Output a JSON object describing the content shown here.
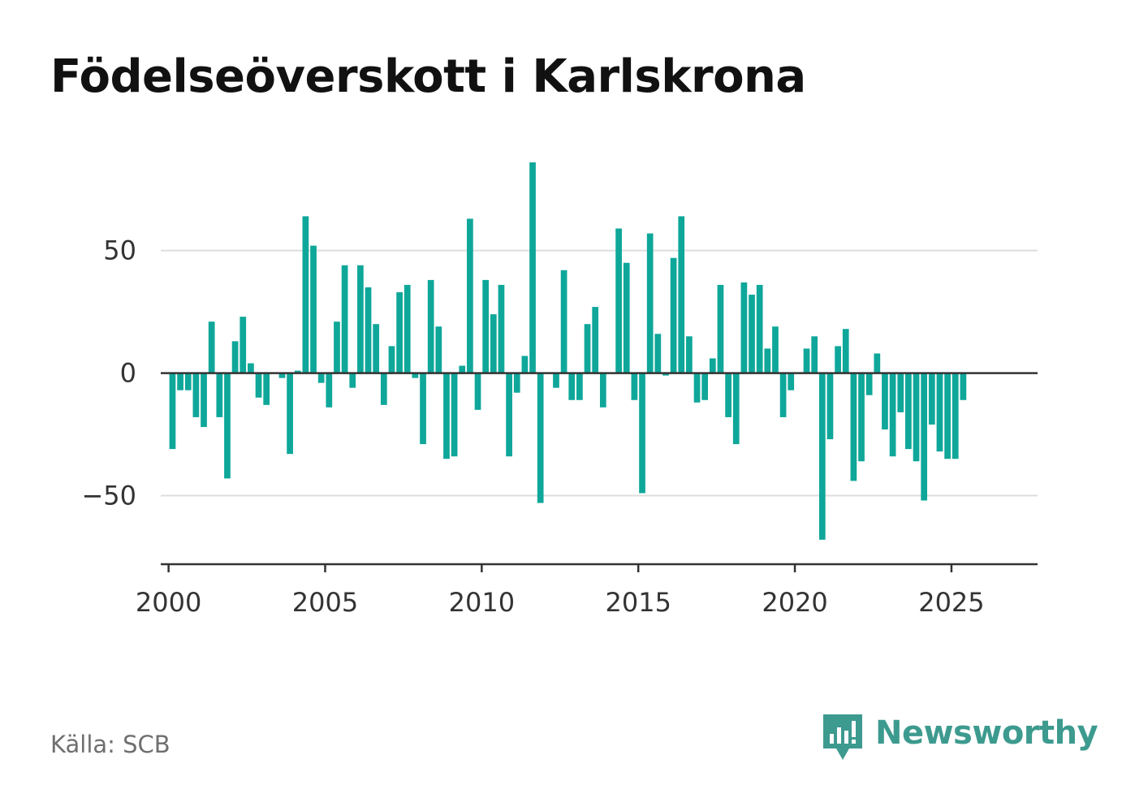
{
  "header": {
    "title": "Födelseöverskott i Karlskrona"
  },
  "footer": {
    "source": "Källa: SCB",
    "brand": "Newsworthy"
  },
  "colors": {
    "bar": "#0ea79a",
    "brand": "#3d9a8f",
    "grid": "#dddddd",
    "axis": "#333333"
  },
  "chart_data": {
    "type": "bar",
    "title": "Födelseöverskott i Karlskrona",
    "xlabel": "",
    "ylabel": "",
    "x_start": 2000,
    "x_step_per_bar": 0.25,
    "xlim": [
      1999.75,
      2027.75
    ],
    "ylim": [
      -78,
      86
    ],
    "grid": true,
    "yticks": [
      {
        "value": 50,
        "label": "50"
      },
      {
        "value": 0,
        "label": "0"
      },
      {
        "value": -50,
        "label": "−50"
      }
    ],
    "xticks": [
      {
        "value": 2000,
        "label": "2000"
      },
      {
        "value": 2005,
        "label": "2005"
      },
      {
        "value": 2010,
        "label": "2010"
      },
      {
        "value": 2015,
        "label": "2015"
      },
      {
        "value": 2020,
        "label": "2020"
      },
      {
        "value": 2025,
        "label": "2025"
      }
    ],
    "values": [
      -31,
      -7,
      -7,
      -18,
      -22,
      21,
      -18,
      -43,
      13,
      23,
      4,
      -10,
      -13,
      0,
      -2,
      -33,
      1,
      64,
      52,
      -4,
      -14,
      21,
      44,
      -6,
      44,
      35,
      20,
      -13,
      11,
      33,
      36,
      -2,
      -29,
      38,
      19,
      -35,
      -34,
      3,
      63,
      -15,
      38,
      24,
      36,
      -34,
      -8,
      7,
      86,
      -53,
      0,
      -6,
      42,
      -11,
      -11,
      20,
      27,
      -14,
      0,
      59,
      45,
      -11,
      -49,
      57,
      16,
      -1,
      47,
      64,
      15,
      -12,
      -11,
      6,
      36,
      -18,
      -29,
      37,
      32,
      36,
      10,
      19,
      -18,
      -7,
      0,
      10,
      15,
      -68,
      -27,
      11,
      18,
      -44,
      -36,
      -9,
      8,
      -23,
      -34,
      -16,
      -31,
      -36,
      -52,
      -21,
      -32,
      -35,
      -35,
      -11
    ]
  }
}
